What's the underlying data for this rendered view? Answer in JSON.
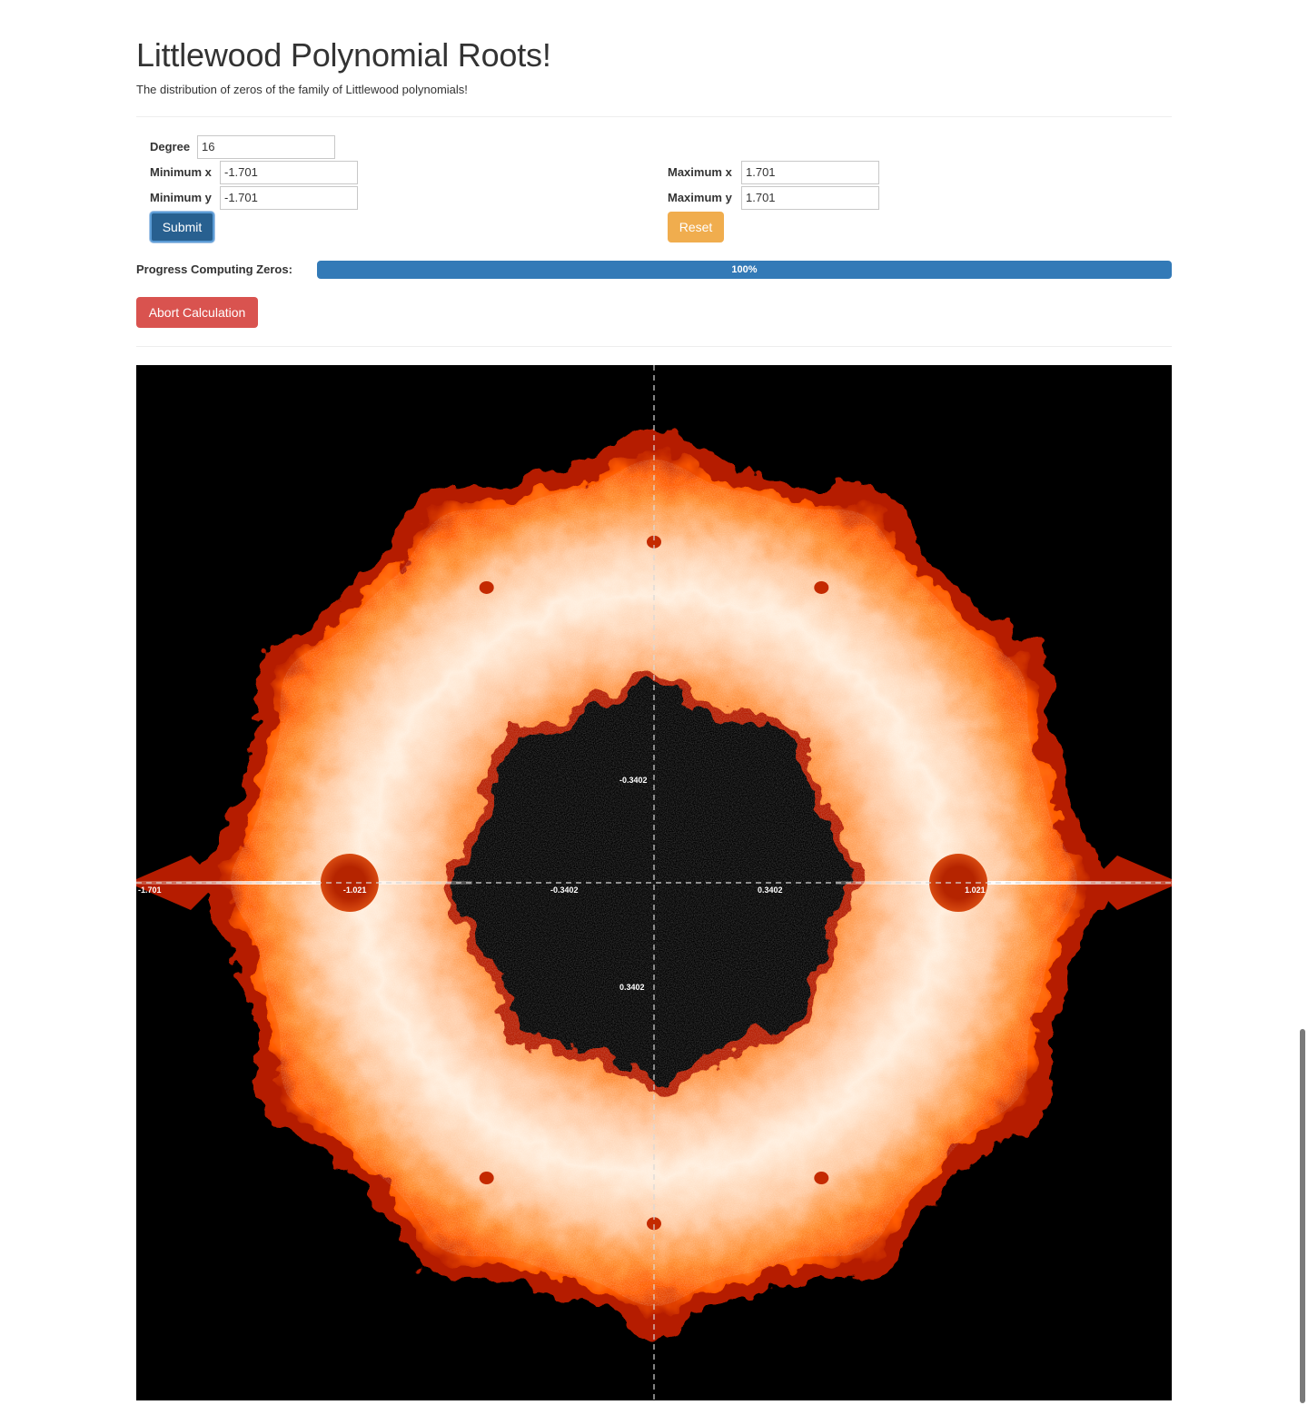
{
  "header": {
    "title": "Littlewood Polynomial Roots!",
    "subtitle": "The distribution of zeros of the family of Littlewood polynomials!"
  },
  "form": {
    "degree": {
      "label": "Degree",
      "value": "16"
    },
    "min_x": {
      "label": "Minimum x",
      "value": "-1.701"
    },
    "min_y": {
      "label": "Minimum y",
      "value": "-1.701"
    },
    "max_x": {
      "label": "Maximum x",
      "value": "1.701"
    },
    "max_y": {
      "label": "Maximum y",
      "value": "1.701"
    },
    "submit_label": "Submit",
    "reset_label": "Reset"
  },
  "progress": {
    "label": "Progress Computing Zeros:",
    "percent": 100,
    "text": "100%"
  },
  "abort_label": "Abort Calculation",
  "plot": {
    "x_range": [
      -1.701,
      1.701
    ],
    "y_range": [
      -1.701,
      1.701
    ],
    "x_tick_labels": [
      "-1.701",
      "-1.021",
      "-0.3402",
      "0.3402",
      "1.021"
    ],
    "y_tick_labels": [
      "-0.3402",
      "0.3402"
    ],
    "colors": {
      "background": "#000000",
      "outer_edge": "#b51c00",
      "mid": "#ff7a14",
      "core": "#ffe9d2",
      "highlight": "#ffffff",
      "axis": "#d8d8d8"
    }
  },
  "colors": {
    "primary": "#337ab7",
    "submit": "#286090",
    "warning": "#f0ad4e",
    "danger": "#d9534f"
  }
}
